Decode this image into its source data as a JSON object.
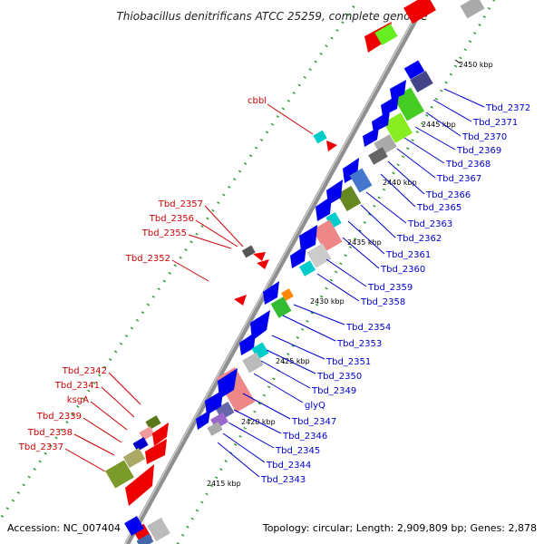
{
  "title": "Thiobacillus denitrificans ATCC 25259, complete genome",
  "accession": "Accession: NC_007404",
  "summary": "Topology: circular; Length: 2,909,809 bp; Genes: 2,878",
  "kbp_labels": [
    "2450 kbp",
    "2445 kbp",
    "2440 kbp",
    "2435 kbp",
    "2430 kbp",
    "2425 kbp",
    "2420 kbp",
    "2415 kbp"
  ],
  "left_genes": [
    "cbbl",
    "Tbd_2357",
    "Tbd_2356",
    "Tbd_2355",
    "Tbd_2352",
    "Tbd_2342",
    "Tbd_2341",
    "ksgA",
    "Tbd_2339",
    "Tbd_2338",
    "Tbd_2337"
  ],
  "right_genes": [
    "Tbd_2372",
    "Tbd_2371",
    "Tbd_2370",
    "Tbd_2369",
    "Tbd_2368",
    "Tbd_2367",
    "Tbd_2366",
    "Tbd_2365",
    "Tbd_2363",
    "Tbd_2362",
    "Tbd_2361",
    "Tbd_2360",
    "Tbd_2359",
    "Tbd_2358",
    "Tbd_2354",
    "Tbd_2353",
    "Tbd_2351",
    "Tbd_2350",
    "Tbd_2349",
    "glyQ",
    "Tbd_2347",
    "Tbd_2346",
    "Tbd_2345",
    "Tbd_2344",
    "Tbd_2343"
  ],
  "colors": {
    "left_label": "#cc0000",
    "right_label": "#0000cc",
    "backbone": "#9a9a9a",
    "forward_gene": "#ee0000",
    "reverse_gene": "#0000ee",
    "rna_gene": "#00cccc"
  }
}
